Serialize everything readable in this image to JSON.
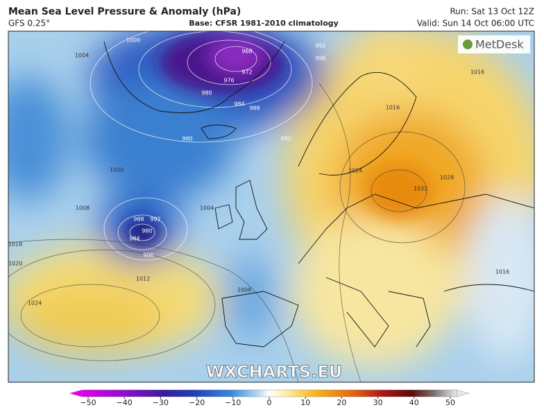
{
  "header": {
    "title": "Mean Sea Level Pressure & Anomaly (hPa)",
    "model": "GFS 0.25°",
    "base": "Base: CFSR 1981-2010 climatology",
    "run": "Run: Sat 13 Oct 12Z",
    "valid": "Valid: Sun 14 Oct 06:00 UTC"
  },
  "logo": "MetDesk",
  "watermark": "WXCHARTS.EU",
  "isobar_labels": [
    "1004",
    "1000",
    "968",
    "972",
    "976",
    "980",
    "984",
    "988",
    "992",
    "996",
    "980",
    "992",
    "1000",
    "1008",
    "1004",
    "988",
    "992",
    "980",
    "984",
    "996",
    "1016",
    "1020",
    "1012",
    "1024",
    "1008",
    "1016",
    "1016",
    "1024",
    "1028",
    "1032",
    "1016"
  ],
  "colorbar": {
    "lim": [
      -50,
      50
    ],
    "ticks": [
      {
        "value": -50,
        "label": "−50"
      },
      {
        "value": -40,
        "label": "−40"
      },
      {
        "value": -30,
        "label": "−30"
      },
      {
        "value": -20,
        "label": "−20"
      },
      {
        "value": -10,
        "label": "−10"
      },
      0,
      10,
      20,
      30,
      40,
      50
    ]
  }
}
